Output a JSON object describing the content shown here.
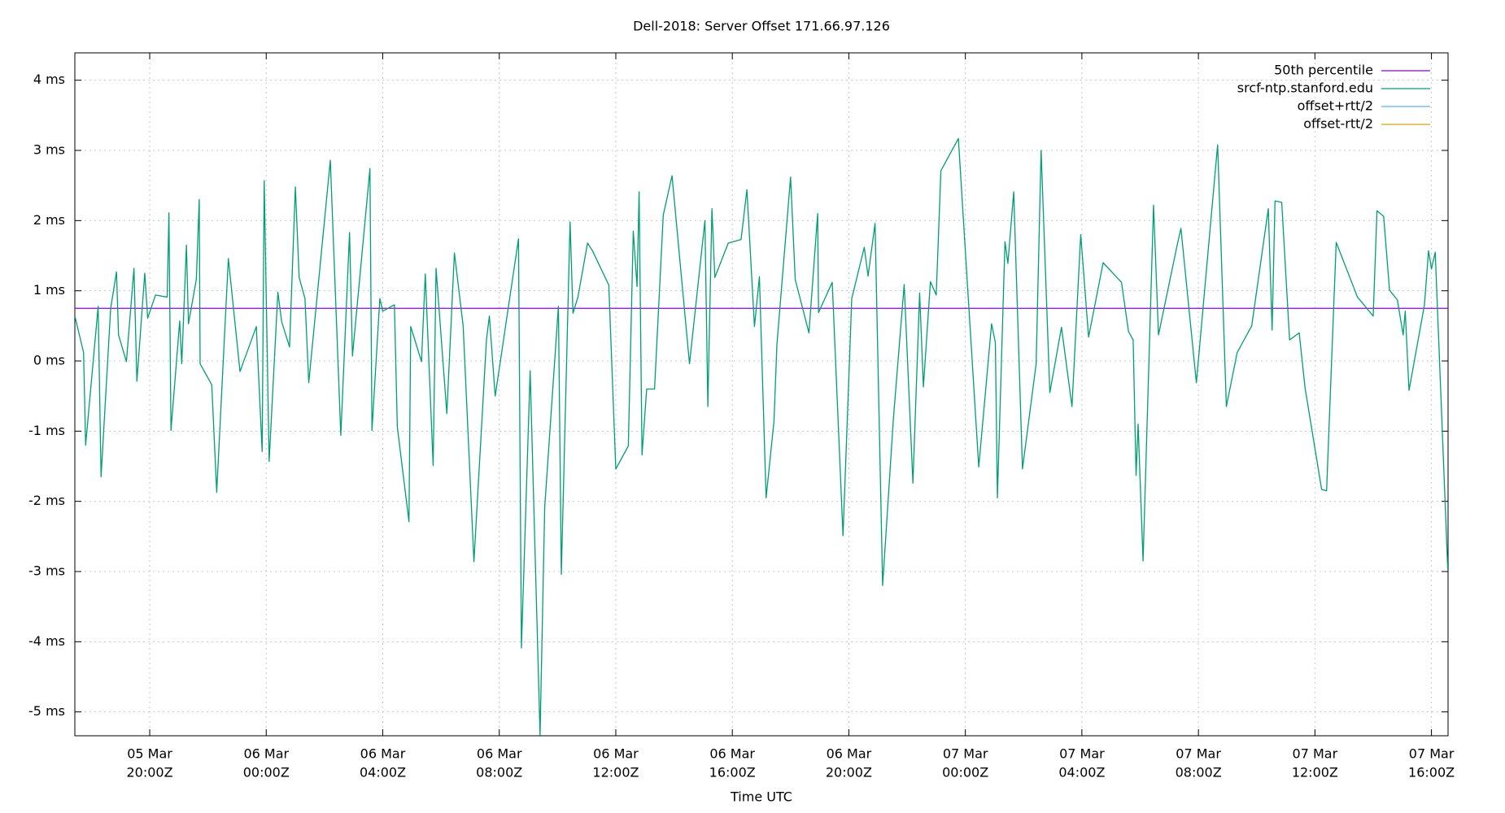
{
  "chart_data": {
    "type": "line",
    "title": "Dell-2018: Server Offset 171.66.97.126",
    "x_label": "Time UTC",
    "xlim": [
      17.43,
      64.57
    ],
    "ylim": [
      -5.34,
      4.39
    ],
    "grid": true,
    "legend": "top-right",
    "xticks": [
      {
        "value": 20,
        "label": [
          "05 Mar",
          "20:00Z"
        ]
      },
      {
        "value": 24,
        "label": [
          "06 Mar",
          "00:00Z"
        ]
      },
      {
        "value": 28,
        "label": [
          "06 Mar",
          "04:00Z"
        ]
      },
      {
        "value": 32,
        "label": [
          "06 Mar",
          "08:00Z"
        ]
      },
      {
        "value": 36,
        "label": [
          "06 Mar",
          "12:00Z"
        ]
      },
      {
        "value": 40,
        "label": [
          "06 Mar",
          "16:00Z"
        ]
      },
      {
        "value": 44,
        "label": [
          "06 Mar",
          "20:00Z"
        ]
      },
      {
        "value": 48,
        "label": [
          "07 Mar",
          "00:00Z"
        ]
      },
      {
        "value": 52,
        "label": [
          "07 Mar",
          "04:00Z"
        ]
      },
      {
        "value": 56,
        "label": [
          "07 Mar",
          "08:00Z"
        ]
      },
      {
        "value": 60,
        "label": [
          "07 Mar",
          "12:00Z"
        ]
      },
      {
        "value": 64,
        "label": [
          "07 Mar",
          "16:00Z"
        ]
      }
    ],
    "yticks": [
      {
        "value": -5,
        "label": "-5 ms"
      },
      {
        "value": -4,
        "label": "-4 ms"
      },
      {
        "value": -3,
        "label": "-3 ms"
      },
      {
        "value": -2,
        "label": "-2 ms"
      },
      {
        "value": -1,
        "label": "-1 ms"
      },
      {
        "value": 0,
        "label": "0 ms"
      },
      {
        "value": 1,
        "label": "1 ms"
      },
      {
        "value": 2,
        "label": "2 ms"
      },
      {
        "value": 3,
        "label": "3 ms"
      },
      {
        "value": 4,
        "label": "4 ms"
      }
    ],
    "x": [
      17.43,
      17.73,
      17.8,
      18.23,
      18.33,
      18.66,
      18.86,
      18.93,
      19.2,
      19.46,
      19.56,
      19.83,
      19.93,
      20.2,
      20.6,
      20.66,
      20.73,
      21.03,
      21.1,
      21.26,
      21.33,
      21.6,
      21.7,
      21.73,
      22.13,
      22.3,
      22.7,
      23.1,
      23.66,
      23.86,
      23.93,
      24.1,
      24.4,
      24.53,
      24.8,
      25.0,
      25.13,
      25.33,
      25.46,
      26.2,
      26.56,
      26.86,
      26.96,
      27.56,
      27.63,
      27.9,
      28.0,
      28.4,
      28.5,
      28.9,
      28.96,
      29.33,
      29.46,
      29.73,
      29.83,
      30.2,
      30.46,
      30.76,
      31.13,
      31.56,
      31.66,
      31.86,
      32.66,
      32.76,
      33.06,
      33.4,
      33.56,
      34.03,
      34.13,
      34.43,
      34.53,
      34.7,
      35.03,
      35.2,
      35.76,
      36.0,
      36.43,
      36.6,
      36.73,
      36.8,
      36.9,
      37.06,
      37.33,
      37.63,
      37.93,
      38.53,
      39.06,
      39.16,
      39.3,
      39.4,
      39.86,
      40.3,
      40.5,
      40.76,
      40.93,
      41.16,
      41.43,
      41.53,
      42.0,
      42.16,
      42.63,
      42.93,
      42.96,
      43.43,
      43.8,
      44.1,
      44.53,
      44.66,
      44.9,
      45.16,
      45.53,
      45.9,
      46.2,
      46.43,
      46.56,
      46.8,
      47.0,
      47.16,
      47.76,
      48.46,
      48.9,
      49.03,
      49.1,
      49.36,
      49.46,
      49.66,
      49.96,
      50.43,
      50.6,
      50.9,
      51.3,
      51.66,
      51.96,
      52.23,
      52.73,
      53.36,
      53.6,
      53.76,
      53.86,
      53.93,
      54.1,
      54.46,
      54.63,
      55.26,
      55.4,
      55.93,
      56.66,
      56.96,
      57.33,
      57.83,
      58.4,
      58.53,
      58.63,
      58.86,
      59.13,
      59.46,
      59.66,
      60.23,
      60.4,
      60.73,
      61.46,
      62.0,
      62.13,
      62.36,
      62.56,
      62.83,
      63.03,
      63.1,
      63.23,
      63.76,
      63.9,
      64.0,
      64.13,
      64.56
    ],
    "series": [
      {
        "name": "50th percentile",
        "color": "#9400d3",
        "y": 0.75
      },
      {
        "name": "srcf-ntp.stanford.edu",
        "color": "#009e73",
        "values": [
          0.64,
          0.12,
          -1.2,
          0.78,
          -1.65,
          0.75,
          1.27,
          0.37,
          -0.01,
          1.32,
          -0.29,
          1.25,
          0.61,
          0.94,
          0.91,
          2.11,
          -0.99,
          0.57,
          -0.04,
          1.65,
          0.53,
          1.16,
          2.3,
          -0.04,
          -0.34,
          -1.87,
          1.46,
          -0.15,
          0.49,
          -1.29,
          2.57,
          -1.43,
          0.98,
          0.56,
          0.2,
          2.48,
          1.19,
          0.89,
          -0.31,
          2.86,
          -1.06,
          1.83,
          0.07,
          2.74,
          -0.99,
          0.89,
          0.71,
          0.8,
          -0.94,
          -2.29,
          0.49,
          -0.01,
          1.24,
          -1.49,
          1.32,
          -0.75,
          1.54,
          0.5,
          -2.86,
          0.3,
          0.64,
          -0.5,
          1.74,
          -4.09,
          -0.14,
          -5.33,
          -2.08,
          0.78,
          -3.04,
          1.98,
          0.68,
          0.91,
          1.68,
          1.57,
          1.08,
          -1.54,
          -1.21,
          1.85,
          1.06,
          2.41,
          -1.34,
          -0.4,
          -0.4,
          2.08,
          2.64,
          -0.04,
          2.0,
          -0.65,
          2.17,
          1.19,
          1.68,
          1.73,
          2.44,
          0.49,
          1.2,
          -1.95,
          -0.86,
          0.23,
          2.62,
          1.16,
          0.4,
          2.1,
          0.69,
          1.12,
          -2.49,
          0.89,
          1.62,
          1.21,
          1.96,
          -3.2,
          -0.82,
          1.09,
          -1.74,
          0.97,
          -0.37,
          1.13,
          0.94,
          2.71,
          3.17,
          -1.51,
          0.53,
          0.26,
          -1.95,
          1.7,
          1.39,
          2.41,
          -1.54,
          -0.04,
          3.0,
          -0.45,
          0.48,
          -0.65,
          1.8,
          0.34,
          1.4,
          1.12,
          0.42,
          0.3,
          -1.63,
          -0.9,
          -2.85,
          2.22,
          0.37,
          1.63,
          1.89,
          -0.31,
          3.08,
          -0.65,
          0.12,
          0.5,
          2.17,
          0.44,
          2.28,
          2.26,
          0.3,
          0.4,
          -0.38,
          -1.83,
          -1.85,
          1.69,
          0.91,
          0.64,
          2.14,
          2.06,
          1.01,
          0.87,
          0.37,
          0.71,
          -0.42,
          0.8,
          1.57,
          1.31,
          1.55,
          -2.97
        ]
      },
      {
        "name": "offset+rtt/2",
        "color": "#56b4e9"
      },
      {
        "name": "offset-rtt/2",
        "color": "#e69f00"
      }
    ]
  }
}
